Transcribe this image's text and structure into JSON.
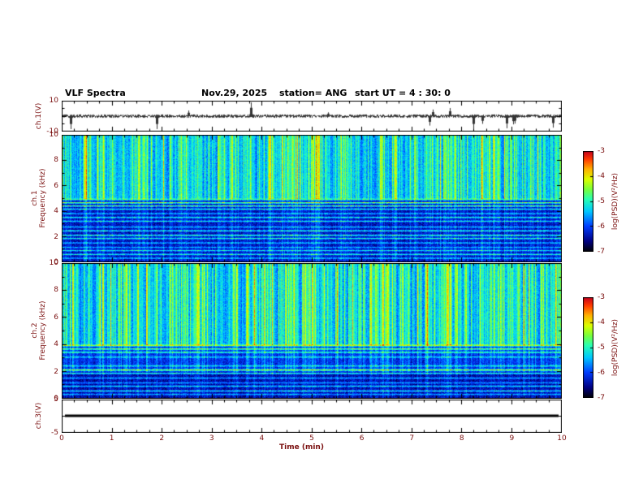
{
  "header": {
    "title": "VLF Spectra",
    "date": "Nov.29, 2025",
    "station": "station= ANG",
    "start_ut": "start UT =  4 : 30: 0"
  },
  "x_axis": {
    "label": "Time (min)",
    "ticks": [
      "0",
      "1",
      "2",
      "3",
      "4",
      "5",
      "6",
      "7",
      "8",
      "9",
      "10"
    ],
    "range": [
      0,
      10
    ]
  },
  "panels": {
    "waveform": {
      "ylabel": "ch.1(V)",
      "yticks": [
        "10",
        "-10"
      ],
      "ytick_values": [
        10,
        -10
      ],
      "ylim": [
        -10,
        10
      ]
    },
    "spec1": {
      "ylabel_ch": "ch.1",
      "ylabel_freq": "Frequency (kHz)",
      "yticks": [
        "0",
        "2",
        "4",
        "6",
        "8",
        "10"
      ],
      "ytick_values": [
        0,
        2,
        4,
        6,
        8,
        10
      ],
      "ylim": [
        0,
        10
      ]
    },
    "spec2": {
      "ylabel_ch": "ch.2",
      "ylabel_freq": "Frequency (kHz)",
      "yticks": [
        "0",
        "2",
        "4",
        "6",
        "8",
        "10"
      ],
      "ytick_values": [
        0,
        2,
        4,
        6,
        8,
        10
      ],
      "ylim": [
        0,
        10
      ]
    },
    "ch3": {
      "ylabel": "ch.3(V)",
      "yticks": [
        "5",
        "-5"
      ],
      "ytick_values": [
        5,
        -5
      ],
      "ylim": [
        -5,
        5
      ]
    }
  },
  "colorbar": {
    "label": "log(PSD)(V²/Hz)",
    "ticks": [
      "-3",
      "-4",
      "-5",
      "-6",
      "-7"
    ],
    "range": [
      -7,
      -3
    ],
    "colormap_stops": [
      [
        0.0,
        "#000008"
      ],
      [
        0.1,
        "#000082"
      ],
      [
        0.25,
        "#003cff"
      ],
      [
        0.4,
        "#00c8ff"
      ],
      [
        0.52,
        "#28ffb4"
      ],
      [
        0.62,
        "#78ff3c"
      ],
      [
        0.72,
        "#dcff00"
      ],
      [
        0.82,
        "#ffb400"
      ],
      [
        0.92,
        "#ff3c00"
      ],
      [
        1.0,
        "#c8001e"
      ]
    ]
  },
  "chart_data": [
    {
      "type": "line",
      "name": "ch1-waveform",
      "ylabel": "ch.1(V)",
      "ylim": [
        -10,
        10
      ],
      "yticks": [
        10,
        -10
      ],
      "xlabel": "Time (min)",
      "xlim": [
        0,
        10
      ],
      "description": "Broadband noise centred on 0 V with sparse impulsive spikes reaching about ±9 V",
      "seed": 1129,
      "noise_amplitude_V": 1.1,
      "spike_count": 14
    },
    {
      "type": "heatmap",
      "name": "ch1-spectrogram",
      "ylabel": "ch.1 Frequency (kHz)",
      "ylim": [
        0,
        10
      ],
      "yticks": [
        0,
        2,
        4,
        6,
        8,
        10
      ],
      "xlabel": "Time (min)",
      "xlim": [
        0,
        10
      ],
      "colorbar": {
        "label": "log(PSD)(V²/Hz)",
        "ticks": [
          -3,
          -4,
          -5,
          -6,
          -7
        ],
        "range": [
          -7,
          -3
        ]
      },
      "description": "Bright broadband impulsive vertical streaks, strongest above 5 kHz; dark blue background below 5 kHz crossed by narrow constant-frequency tone lines",
      "seed": 42,
      "render": {
        "zones": [
          {
            "to": 5,
            "base": 0.1,
            "amp": 0.22
          },
          {
            "to": 10.1,
            "base": 0.22,
            "amp": 0.65
          }
        ],
        "tones": [
          {
            "f": 4.95,
            "s": 0.4
          },
          {
            "f": 4.7,
            "s": 0.45
          },
          {
            "f": 4.45,
            "s": 0.4
          },
          {
            "f": 4.2,
            "s": 0.3
          },
          {
            "f": 3.85,
            "s": 0.22
          },
          {
            "f": 3.55,
            "s": 0.3
          },
          {
            "f": 3.25,
            "s": 0.28
          },
          {
            "f": 2.8,
            "s": 0.22
          },
          {
            "f": 2.5,
            "s": 0.3
          },
          {
            "f": 2.15,
            "s": 0.34
          },
          {
            "f": 1.9,
            "s": 0.3
          },
          {
            "f": 1.55,
            "s": 0.22
          },
          {
            "f": 1.2,
            "s": 0.2
          },
          {
            "f": 0.95,
            "s": 0.26
          },
          {
            "f": 0.65,
            "s": 0.3
          },
          {
            "f": 0.35,
            "s": 0.22
          }
        ]
      }
    },
    {
      "type": "heatmap",
      "name": "ch2-spectrogram",
      "ylabel": "ch.2 Frequency (kHz)",
      "ylim": [
        0,
        10
      ],
      "yticks": [
        0,
        2,
        4,
        6,
        8,
        10
      ],
      "xlabel": "Time (min)",
      "xlim": [
        0,
        10
      ],
      "colorbar": {
        "label": "log(PSD)(V²/Hz)",
        "ticks": [
          -3,
          -4,
          -5,
          -6,
          -7
        ],
        "range": [
          -7,
          -3
        ]
      },
      "description": "Bright broadband impulsive vertical streaks above ~4 kHz; darker band below 2 kHz with narrow tone lines near 2 and 4 kHz",
      "seed": 77,
      "render": {
        "zones": [
          {
            "to": 2,
            "base": 0.09,
            "amp": 0.16
          },
          {
            "to": 4,
            "base": 0.14,
            "amp": 0.28
          },
          {
            "to": 10.1,
            "base": 0.22,
            "amp": 0.65
          }
        ],
        "tones": [
          {
            "f": 3.95,
            "s": 0.42
          },
          {
            "f": 3.7,
            "s": 0.36
          },
          {
            "f": 3.45,
            "s": 0.28
          },
          {
            "f": 3.1,
            "s": 0.2
          },
          {
            "f": 2.45,
            "s": 0.22
          },
          {
            "f": 2.15,
            "s": 0.4
          },
          {
            "f": 1.9,
            "s": 0.34
          },
          {
            "f": 1.55,
            "s": 0.22
          },
          {
            "f": 1.2,
            "s": 0.2
          },
          {
            "f": 0.95,
            "s": 0.28
          },
          {
            "f": 0.6,
            "s": 0.3
          },
          {
            "f": 0.35,
            "s": 0.22
          }
        ]
      }
    },
    {
      "type": "line",
      "name": "ch3-flatline",
      "ylabel": "ch.3(V)",
      "ylim": [
        -5,
        5
      ],
      "yticks": [
        5,
        -5
      ],
      "xlabel": "Time (min)",
      "xlim": [
        0,
        10
      ],
      "value": 0,
      "description": "Constant 0 V thick flat trace across the full record"
    }
  ]
}
